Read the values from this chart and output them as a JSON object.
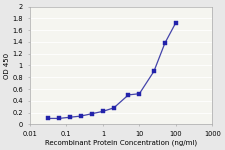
{
  "x": [
    0.031,
    0.063,
    0.125,
    0.25,
    0.5,
    1.0,
    2.0,
    5.0,
    10.0,
    25.0,
    50.0,
    100.0
  ],
  "y": [
    0.1,
    0.1,
    0.12,
    0.14,
    0.18,
    0.22,
    0.28,
    0.5,
    0.52,
    0.9,
    1.38,
    1.73
  ],
  "line_color": "#4444aa",
  "marker_color": "#2222aa",
  "marker_size": 2.5,
  "line_width": 0.9,
  "xlabel": "Recombinant Protein Concentration (ng/ml)",
  "ylabel": "OD 450",
  "xlim": [
    0.01,
    1000
  ],
  "ylim": [
    0,
    2
  ],
  "yticks": [
    0,
    0.2,
    0.4,
    0.6,
    0.8,
    1.0,
    1.2,
    1.4,
    1.6,
    1.8,
    2
  ],
  "ytick_labels": [
    "0",
    "0.2",
    "0.4",
    "0.6",
    "0.8",
    "1",
    "1.2",
    "1.4",
    "1.6",
    "1.8",
    "2"
  ],
  "xtick_labels": [
    "0.01",
    "0.1",
    "1",
    "10",
    "100",
    "1000"
  ],
  "xtick_values": [
    0.01,
    0.1,
    1,
    10,
    100,
    1000
  ],
  "background_color": "#e8e8e8",
  "plot_bg_color": "#f5f5f0",
  "xlabel_fontsize": 5.0,
  "ylabel_fontsize": 5.0,
  "tick_fontsize": 4.8,
  "grid_color": "#ffffff",
  "grid_linewidth": 0.6
}
